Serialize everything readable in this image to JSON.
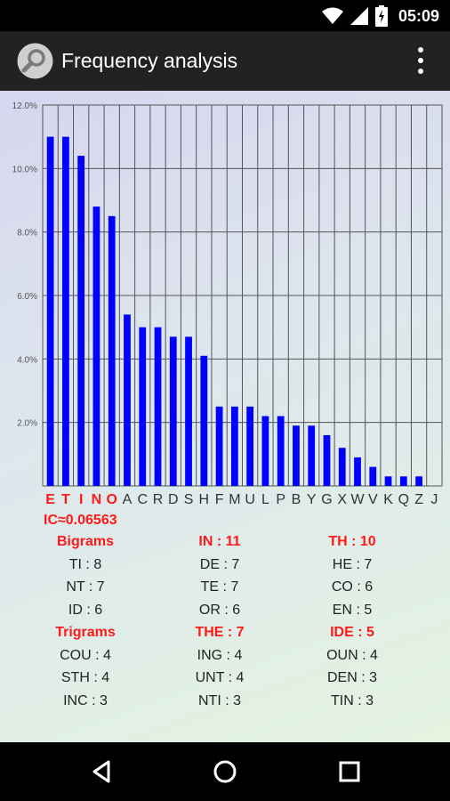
{
  "status_bar": {
    "time": "05:09",
    "icons": [
      "wifi-icon",
      "cell-signal-icon",
      "battery-charging-icon"
    ]
  },
  "action_bar": {
    "title": "Frequency analysis",
    "app_icon": "magnifier-icon",
    "menu_icon": "overflow-menu-icon"
  },
  "colors": {
    "bar": "#0000ff",
    "highlight": "#ff1a1a",
    "grid": "#555555"
  },
  "chart_data": {
    "type": "bar",
    "categories": [
      "E",
      "T",
      "I",
      "N",
      "O",
      "A",
      "C",
      "R",
      "D",
      "S",
      "H",
      "F",
      "M",
      "U",
      "L",
      "P",
      "B",
      "Y",
      "G",
      "X",
      "W",
      "V",
      "K",
      "Q",
      "Z",
      "J"
    ],
    "highlighted_categories": [
      "E",
      "T",
      "I",
      "N",
      "O"
    ],
    "values": [
      11.0,
      11.0,
      10.4,
      8.8,
      8.5,
      5.4,
      5.0,
      5.0,
      4.7,
      4.7,
      4.1,
      2.5,
      2.5,
      2.5,
      2.2,
      2.2,
      1.9,
      1.9,
      1.6,
      1.2,
      0.9,
      0.6,
      0.3,
      0.3,
      0.3,
      0.0
    ],
    "ylim": [
      0,
      12
    ],
    "y_ticks": [
      "2.0%",
      "4.0%",
      "6.0%",
      "8.0%",
      "10.0%",
      "12.0%"
    ],
    "y_tick_values": [
      2,
      4,
      6,
      8,
      10,
      12
    ],
    "grid": true
  },
  "ic": "IC≈0.06563",
  "ngrams": {
    "rows": [
      {
        "c1": "Bigrams",
        "c2": "IN : 11",
        "c3": "TH : 10",
        "highlight": true
      },
      {
        "c1": "TI : 8",
        "c2": "DE : 7",
        "c3": "HE : 7",
        "highlight": false
      },
      {
        "c1": "NT : 7",
        "c2": "TE : 7",
        "c3": "CO : 6",
        "highlight": false
      },
      {
        "c1": "ID : 6",
        "c2": "OR : 6",
        "c3": "EN : 5",
        "highlight": false
      },
      {
        "c1": "Trigrams",
        "c2": "THE : 7",
        "c3": "IDE : 5",
        "highlight": true
      },
      {
        "c1": "COU : 4",
        "c2": "ING : 4",
        "c3": "OUN : 4",
        "highlight": false
      },
      {
        "c1": "STH : 4",
        "c2": "UNT : 4",
        "c3": "DEN : 3",
        "highlight": false
      },
      {
        "c1": "INC : 3",
        "c2": "NTI : 3",
        "c3": "TIN : 3",
        "highlight": false
      }
    ]
  },
  "nav_bar": {
    "buttons": [
      "back-icon",
      "home-icon",
      "recents-icon"
    ]
  }
}
